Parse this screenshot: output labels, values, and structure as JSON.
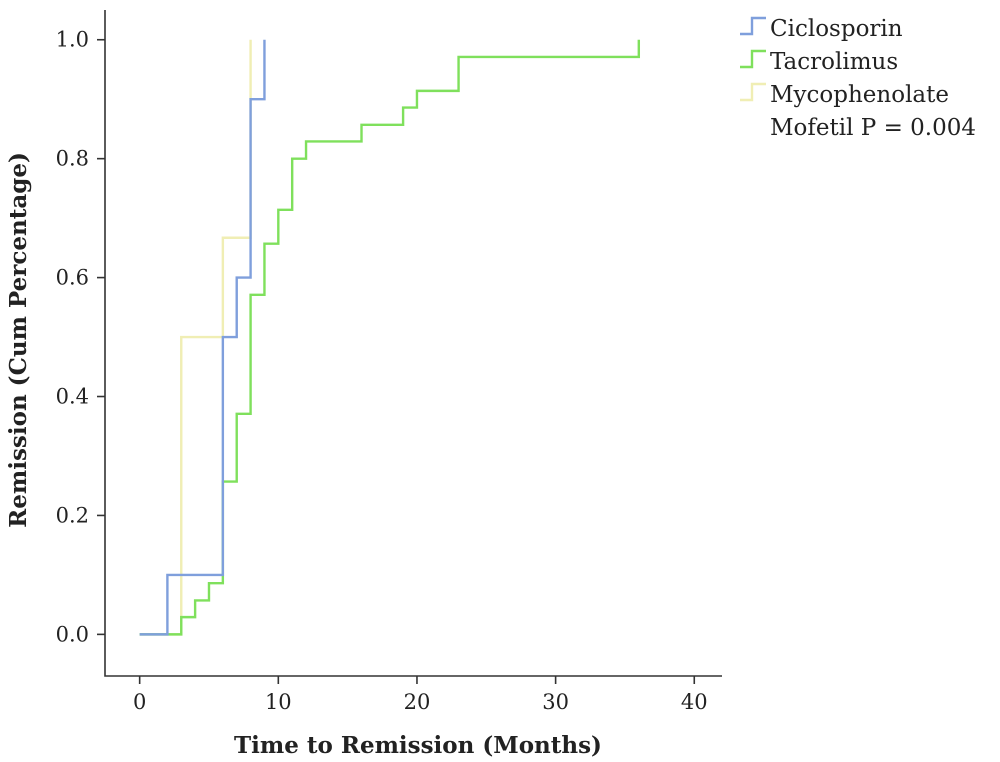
{
  "chart_data": {
    "type": "line",
    "step": true,
    "xlabel": "Time to Remission (Months)",
    "ylabel": "Remission (Cum Percentage)",
    "xlim": [
      -2.5,
      42
    ],
    "ylim": [
      -0.07,
      1.05
    ],
    "xticks": [
      0,
      10,
      20,
      30,
      40
    ],
    "xtick_labels": [
      "0",
      "10",
      "20",
      "30",
      "40"
    ],
    "yticks": [
      0.0,
      0.2,
      0.4,
      0.6,
      0.8,
      1.0
    ],
    "ytick_labels": [
      "0.0",
      "0.2",
      "0.4",
      "0.6",
      "0.8",
      "1.0"
    ],
    "grid": false,
    "legend_position": "top-right",
    "legend_lines": [
      "Ciclosporin",
      "Tacrolimus",
      "Mycophenolate",
      "Mofetil P = 0.004"
    ],
    "series": [
      {
        "name": "Ciclosporin",
        "color": "#7f9fdc",
        "x": [
          0,
          2,
          6,
          7,
          8,
          9
        ],
        "y": [
          0.0,
          0.1,
          0.5,
          0.6,
          0.9,
          1.0
        ]
      },
      {
        "name": "Tacrolimus",
        "color": "#7fe05c",
        "x": [
          0,
          3,
          4,
          5,
          6,
          7,
          8,
          9,
          10,
          11,
          12,
          16,
          19,
          20,
          23,
          36
        ],
        "y": [
          0.0,
          0.029,
          0.057,
          0.086,
          0.257,
          0.371,
          0.571,
          0.657,
          0.714,
          0.8,
          0.829,
          0.857,
          0.886,
          0.914,
          0.971,
          1.0
        ]
      },
      {
        "name": "Mycophenolate Mofetil",
        "color": "#f0eeb4",
        "x": [
          0,
          3,
          6,
          8
        ],
        "y": [
          0.0,
          0.5,
          0.667,
          1.0
        ]
      }
    ]
  }
}
